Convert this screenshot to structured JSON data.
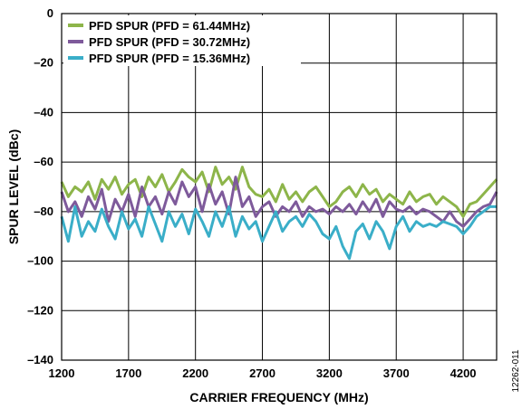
{
  "chart_data": {
    "type": "line",
    "xlabel": "CARRIER FREQUENCY (MHz)",
    "ylabel": "SPUR LEVEL (dBc)",
    "xlim": [
      1200,
      4450
    ],
    "ylim": [
      -140,
      0
    ],
    "x_ticks": [
      1200,
      1700,
      2200,
      2700,
      3200,
      3700,
      4200
    ],
    "y_ticks": [
      0,
      -20,
      -40,
      -60,
      -80,
      -100,
      -120,
      -140
    ],
    "y_tick_labels": [
      "0",
      "–20",
      "–40",
      "–60",
      "–80",
      "–100",
      "–120",
      "–140"
    ],
    "grid": true,
    "legend_position": "top-left",
    "series": [
      {
        "name": "PFD SPUR (PFD = 61.44MHz)",
        "color": "#8db54a",
        "x": [
          1200,
          1250,
          1300,
          1350,
          1400,
          1450,
          1500,
          1550,
          1600,
          1650,
          1700,
          1750,
          1800,
          1850,
          1900,
          1950,
          2000,
          2050,
          2100,
          2150,
          2200,
          2250,
          2300,
          2350,
          2400,
          2450,
          2500,
          2550,
          2600,
          2650,
          2700,
          2750,
          2800,
          2850,
          2900,
          2950,
          3000,
          3050,
          3100,
          3150,
          3200,
          3250,
          3300,
          3350,
          3400,
          3450,
          3500,
          3550,
          3600,
          3650,
          3700,
          3750,
          3800,
          3850,
          3900,
          3950,
          4000,
          4050,
          4100,
          4150,
          4200,
          4250,
          4300,
          4350,
          4400,
          4450
        ],
        "values": [
          -68,
          -74,
          -70,
          -72,
          -68,
          -75,
          -67,
          -71,
          -66,
          -73,
          -69,
          -67,
          -74,
          -66,
          -70,
          -65,
          -72,
          -68,
          -63,
          -66,
          -68,
          -64,
          -72,
          -62,
          -69,
          -66,
          -71,
          -62,
          -70,
          -73,
          -74,
          -71,
          -76,
          -69,
          -75,
          -72,
          -76,
          -72,
          -70,
          -74,
          -78,
          -76,
          -72,
          -70,
          -74,
          -69,
          -73,
          -71,
          -76,
          -73,
          -75,
          -77,
          -72,
          -76,
          -74,
          -73,
          -77,
          -74,
          -76,
          -78,
          -82,
          -77,
          -76,
          -73,
          -70,
          -67
        ]
      },
      {
        "name": "PFD SPUR (PFD = 30.72MHz)",
        "color": "#7e5a9b",
        "x": [
          1200,
          1250,
          1300,
          1350,
          1400,
          1450,
          1500,
          1550,
          1600,
          1650,
          1700,
          1750,
          1800,
          1850,
          1900,
          1950,
          2000,
          2050,
          2100,
          2150,
          2200,
          2250,
          2300,
          2350,
          2400,
          2450,
          2500,
          2550,
          2600,
          2650,
          2700,
          2750,
          2800,
          2850,
          2900,
          2950,
          3000,
          3050,
          3100,
          3150,
          3200,
          3250,
          3300,
          3350,
          3400,
          3450,
          3500,
          3550,
          3600,
          3650,
          3700,
          3750,
          3800,
          3850,
          3900,
          3950,
          4000,
          4050,
          4100,
          4150,
          4200,
          4250,
          4300,
          4350,
          4400,
          4450
        ],
        "values": [
          -72,
          -80,
          -76,
          -82,
          -74,
          -79,
          -71,
          -84,
          -75,
          -80,
          -73,
          -82,
          -70,
          -78,
          -74,
          -81,
          -72,
          -77,
          -68,
          -74,
          -70,
          -80,
          -69,
          -77,
          -72,
          -81,
          -66,
          -78,
          -74,
          -82,
          -78,
          -76,
          -82,
          -78,
          -80,
          -76,
          -82,
          -78,
          -80,
          -79,
          -81,
          -78,
          -80,
          -77,
          -81,
          -76,
          -80,
          -75,
          -82,
          -76,
          -79,
          -80,
          -78,
          -81,
          -79,
          -80,
          -82,
          -84,
          -80,
          -84,
          -86,
          -83,
          -80,
          -78,
          -77,
          -72
        ]
      },
      {
        "name": "PFD SPUR (PFD = 15.36MHz)",
        "color": "#3aaec8",
        "x": [
          1200,
          1250,
          1300,
          1350,
          1400,
          1450,
          1500,
          1550,
          1600,
          1650,
          1700,
          1750,
          1800,
          1850,
          1900,
          1950,
          2000,
          2050,
          2100,
          2150,
          2200,
          2250,
          2300,
          2350,
          2400,
          2450,
          2500,
          2550,
          2600,
          2650,
          2700,
          2750,
          2800,
          2850,
          2900,
          2950,
          3000,
          3050,
          3100,
          3150,
          3200,
          3250,
          3300,
          3350,
          3400,
          3450,
          3500,
          3550,
          3600,
          3650,
          3700,
          3750,
          3800,
          3850,
          3900,
          3950,
          4000,
          4050,
          4100,
          4150,
          4200,
          4250,
          4300,
          4350,
          4400,
          4450
        ],
        "values": [
          -82,
          -92,
          -78,
          -90,
          -84,
          -88,
          -79,
          -86,
          -91,
          -80,
          -87,
          -83,
          -90,
          -78,
          -85,
          -92,
          -80,
          -86,
          -81,
          -89,
          -79,
          -84,
          -90,
          -80,
          -86,
          -78,
          -90,
          -82,
          -87,
          -84,
          -92,
          -86,
          -80,
          -88,
          -84,
          -82,
          -86,
          -81,
          -84,
          -89,
          -91,
          -86,
          -94,
          -99,
          -88,
          -85,
          -91,
          -84,
          -88,
          -95,
          -86,
          -82,
          -88,
          -84,
          -86,
          -85,
          -86,
          -84,
          -85,
          -86,
          -89,
          -86,
          -82,
          -80,
          -78,
          -78
        ]
      }
    ]
  },
  "figure_id": "12262-011"
}
